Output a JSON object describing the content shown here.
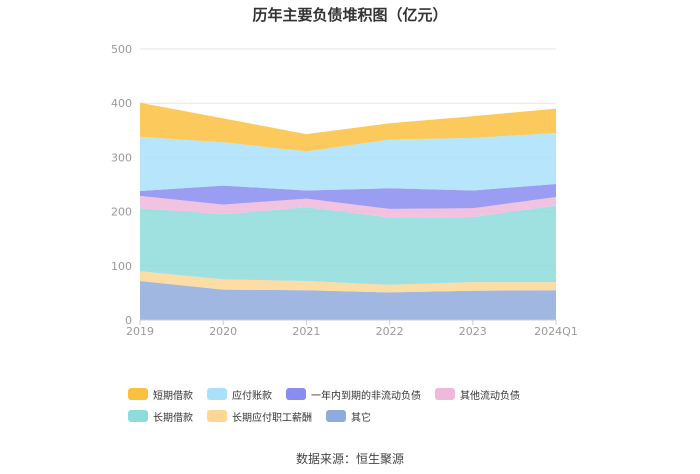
{
  "chart_data": {
    "type": "area",
    "stacked": true,
    "title": "历年主要负债堆积图（亿元）",
    "xlabel": "",
    "ylabel": "",
    "x": [
      "2019",
      "2020",
      "2021",
      "2022",
      "2023",
      "2024Q1"
    ],
    "ylim": [
      0,
      500
    ],
    "yticks": [
      0,
      100,
      200,
      300,
      400,
      500
    ],
    "grid": true,
    "legend_position": "bottom",
    "series": [
      {
        "name": "其它",
        "color": "#8faadc",
        "values": [
          72,
          56,
          55,
          51,
          54,
          55
        ]
      },
      {
        "name": "长期应付职工薪酬",
        "color": "#fbd795",
        "values": [
          18,
          19,
          17,
          14,
          16,
          15
        ]
      },
      {
        "name": "长期借款",
        "color": "#8ddcdb",
        "values": [
          116,
          120,
          136,
          124,
          120,
          141
        ]
      },
      {
        "name": "其他流动负债",
        "color": "#f0b9dc",
        "values": [
          23,
          18,
          16,
          16,
          16,
          16
        ]
      },
      {
        "name": "一年内到期的非流动负债",
        "color": "#8a8cf0",
        "values": [
          9,
          35,
          15,
          38,
          33,
          24
        ]
      },
      {
        "name": "应付账款",
        "color": "#a9e1fb",
        "values": [
          100,
          80,
          72,
          90,
          97,
          94
        ]
      },
      {
        "name": "短期借款",
        "color": "#fcc03f",
        "values": [
          63,
          44,
          32,
          30,
          40,
          45
        ]
      }
    ]
  },
  "legend_order": [
    "短期借款",
    "应付账款",
    "一年内到期的非流动负债",
    "其他流动负债",
    "长期借款",
    "长期应付职工薪酬",
    "其它"
  ],
  "source": "数据来源：恒生聚源"
}
